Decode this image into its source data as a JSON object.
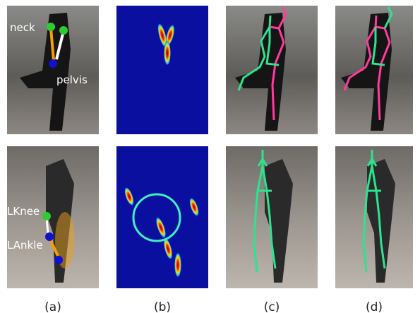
{
  "annotations": {
    "top": [
      "neck",
      "pelvis"
    ],
    "bottom": [
      "LKnee",
      "LAnkle"
    ]
  },
  "captions": [
    "(a)",
    "(b)",
    "(c)",
    "(d)"
  ]
}
